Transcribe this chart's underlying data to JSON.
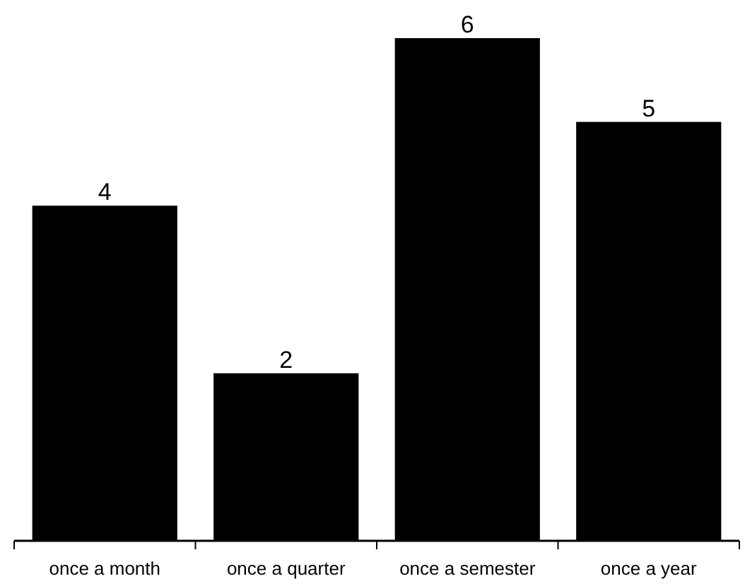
{
  "chart_data": {
    "type": "bar",
    "categories": [
      "once a month",
      "once a quarter",
      "once a semester",
      "once a year"
    ],
    "values": [
      4,
      2,
      6,
      5
    ],
    "color": "#000000",
    "data_labels": true
  }
}
